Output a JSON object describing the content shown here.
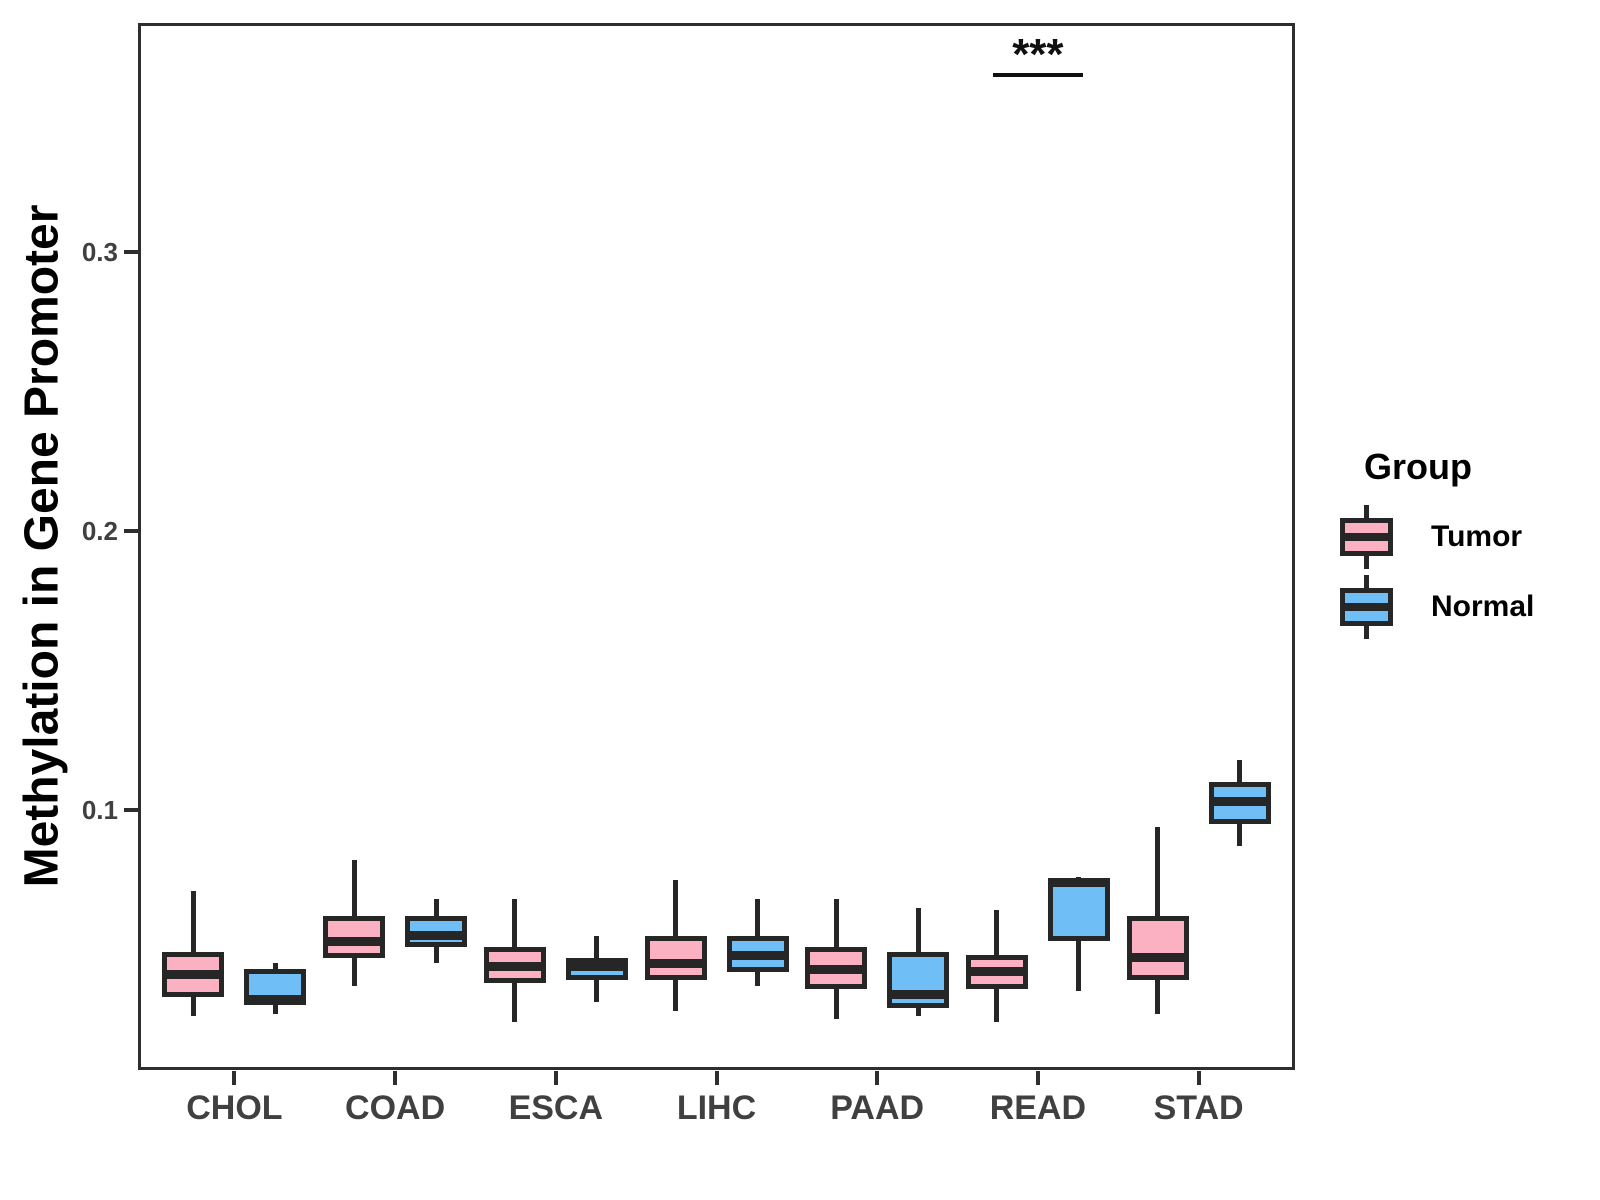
{
  "chart_data": {
    "type": "boxplot",
    "title": "",
    "xlabel": "",
    "ylabel": "Methylation in Gene Promoter",
    "categories": [
      "CHOL",
      "COAD",
      "ESCA",
      "LIHC",
      "PAAD",
      "READ",
      "STAD"
    ],
    "y_ticks": [
      0.1,
      0.2,
      0.3
    ],
    "y_tick_labels": [
      "0.1",
      "0.2",
      "0.3"
    ],
    "ylim": [
      0.0068,
      0.3821
    ],
    "grid": "off",
    "colors": {
      "tumor_fill": "#FBB1C2",
      "normal_fill": "#6FBEF6",
      "box_stroke": "#262626",
      "axis": "#2e2e2e",
      "tick_text": "#404040",
      "significance": "#111111"
    },
    "legend": {
      "title": "Group",
      "position": "right",
      "entries": [
        {
          "label": "Tumor",
          "color": "#FBB1C2"
        },
        {
          "label": "Normal",
          "color": "#6FBEF6"
        }
      ]
    },
    "series": [
      {
        "name": "Tumor",
        "color": "#FBB1C2",
        "boxes": [
          {
            "category": "CHOL",
            "min": 0.026,
            "q1": 0.033,
            "median": 0.041,
            "q3": 0.049,
            "max": 0.071
          },
          {
            "category": "COAD",
            "min": 0.037,
            "q1": 0.047,
            "median": 0.053,
            "q3": 0.062,
            "max": 0.082
          },
          {
            "category": "ESCA",
            "min": 0.024,
            "q1": 0.038,
            "median": 0.044,
            "q3": 0.051,
            "max": 0.068
          },
          {
            "category": "LIHC",
            "min": 0.028,
            "q1": 0.039,
            "median": 0.045,
            "q3": 0.055,
            "max": 0.075
          },
          {
            "category": "PAAD",
            "min": 0.025,
            "q1": 0.036,
            "median": 0.043,
            "q3": 0.051,
            "max": 0.068
          },
          {
            "category": "READ",
            "min": 0.024,
            "q1": 0.036,
            "median": 0.042,
            "q3": 0.048,
            "max": 0.064
          },
          {
            "category": "STAD",
            "min": 0.027,
            "q1": 0.039,
            "median": 0.047,
            "q3": 0.062,
            "max": 0.094
          }
        ]
      },
      {
        "name": "Normal",
        "color": "#6FBEF6",
        "boxes": [
          {
            "category": "CHOL",
            "min": 0.027,
            "q1": 0.03,
            "median": 0.032,
            "q3": 0.043,
            "max": 0.045
          },
          {
            "category": "COAD",
            "min": 0.045,
            "q1": 0.051,
            "median": 0.055,
            "q3": 0.062,
            "max": 0.068
          },
          {
            "category": "ESCA",
            "min": 0.031,
            "q1": 0.039,
            "median": 0.044,
            "q3": 0.047,
            "max": 0.055
          },
          {
            "category": "LIHC",
            "min": 0.037,
            "q1": 0.042,
            "median": 0.048,
            "q3": 0.055,
            "max": 0.068
          },
          {
            "category": "PAAD",
            "min": 0.026,
            "q1": 0.029,
            "median": 0.034,
            "q3": 0.049,
            "max": 0.065
          },
          {
            "category": "READ",
            "min": 0.035,
            "q1": 0.053,
            "median": 0.074,
            "q3": 0.0755,
            "max": 0.076
          },
          {
            "category": "STAD",
            "min": 0.087,
            "q1": 0.095,
            "median": 0.103,
            "q3": 0.11,
            "max": 0.118
          }
        ]
      }
    ],
    "significance": [
      {
        "category": "READ",
        "label": "***",
        "y": 0.364
      }
    ]
  }
}
